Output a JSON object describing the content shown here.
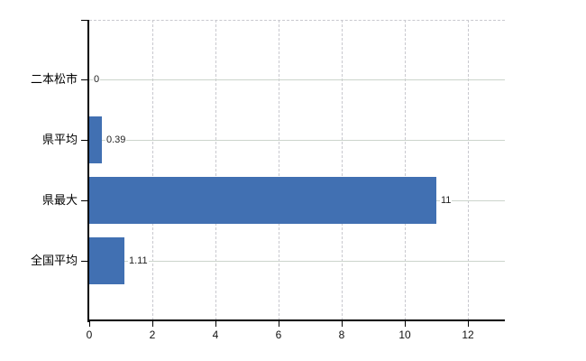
{
  "chart_data": {
    "type": "bar",
    "orientation": "horizontal",
    "title": "",
    "xlabel": "",
    "ylabel": "",
    "categories": [
      "二本松市",
      "県平均",
      "県最大",
      "全国平均"
    ],
    "values": [
      0,
      0.39,
      11,
      1.11
    ],
    "value_labels": [
      "0",
      "0.39",
      "11",
      "1.11"
    ],
    "x_tick_values": [
      0,
      2,
      4,
      6,
      8,
      10,
      12
    ],
    "x_tick_labels": [
      "0",
      "2",
      "4",
      "6",
      "8",
      "10",
      "12"
    ],
    "xlim": [
      0,
      13.2
    ],
    "legend": "none",
    "grid": {
      "vertical": "dashed",
      "horizontal": "solid",
      "top_border": "dashed"
    },
    "colors": {
      "bar": "#4170b2",
      "grid_solid": "#ccd4cc",
      "grid_dashed": "#c9c9cf",
      "axis": "#000000",
      "text": "#1a1a1a"
    }
  }
}
